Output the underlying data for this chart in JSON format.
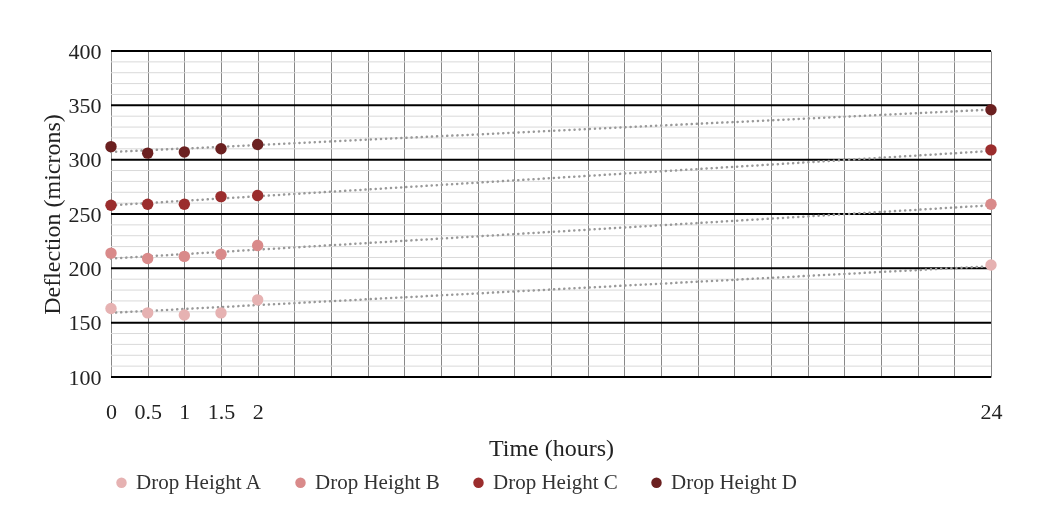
{
  "chart_data": {
    "type": "scatter",
    "xlabel": "Time (hours)",
    "ylabel": "Deflection (microns)",
    "categories": [
      "0",
      "0.5",
      "1",
      "1.5",
      "2",
      null,
      null,
      null,
      null,
      null,
      null,
      null,
      null,
      null,
      null,
      null,
      null,
      null,
      null,
      null,
      null,
      null,
      null,
      null,
      "24"
    ],
    "series": [
      {
        "name": "Drop Height A",
        "color": "#e6b2b2",
        "values": [
          163,
          159,
          157,
          159,
          171,
          null,
          null,
          null,
          null,
          null,
          null,
          null,
          null,
          null,
          null,
          null,
          null,
          null,
          null,
          null,
          null,
          null,
          null,
          null,
          203
        ]
      },
      {
        "name": "Drop Height B",
        "color": "#d98a8a",
        "values": [
          214,
          209,
          211,
          213,
          221,
          null,
          null,
          null,
          null,
          null,
          null,
          null,
          null,
          null,
          null,
          null,
          null,
          null,
          null,
          null,
          null,
          null,
          null,
          null,
          259
        ]
      },
      {
        "name": "Drop Height C",
        "color": "#9b2d2d",
        "values": [
          258,
          259,
          259,
          266,
          267,
          null,
          null,
          null,
          null,
          null,
          null,
          null,
          null,
          null,
          null,
          null,
          null,
          null,
          null,
          null,
          null,
          null,
          null,
          null,
          309
        ]
      },
      {
        "name": "Drop Height D",
        "color": "#6b2020",
        "values": [
          312,
          306,
          307,
          310,
          314,
          null,
          null,
          null,
          null,
          null,
          null,
          null,
          null,
          null,
          null,
          null,
          null,
          null,
          null,
          null,
          null,
          null,
          null,
          null,
          346
        ]
      },
      {
        "type": "line",
        "color": "#999999",
        "line_style": "dotted",
        "marker": "none",
        "x": [
          "0",
          "24"
        ],
        "values": [
          159,
          202
        ]
      },
      {
        "type": "line",
        "color": "#999999",
        "line_style": "dotted",
        "marker": "none",
        "x": [
          "0",
          "24"
        ],
        "values": [
          209,
          258
        ]
      },
      {
        "type": "line",
        "color": "#999999",
        "line_style": "dotted",
        "marker": "none",
        "x": [
          "0",
          "24"
        ],
        "values": [
          258,
          308
        ]
      },
      {
        "type": "line",
        "color": "#999999",
        "line_style": "dotted",
        "marker": "none",
        "x": [
          "0",
          "24"
        ],
        "values": [
          307,
          346
        ]
      }
    ],
    "ylim": [
      100,
      400
    ],
    "yticks": [
      100,
      {
        "value": 110,
        "label": null
      },
      {
        "value": 120,
        "label": null
      },
      {
        "value": 130,
        "label": null
      },
      {
        "value": 140,
        "label": null
      },
      150,
      {
        "value": 160,
        "label": null
      },
      {
        "value": 170,
        "label": null
      },
      {
        "value": 180,
        "label": null
      },
      {
        "value": 190,
        "label": null
      },
      200,
      {
        "value": 210,
        "label": null
      },
      {
        "value": 220,
        "label": null
      },
      {
        "value": 230,
        "label": null
      },
      {
        "value": 240,
        "label": null
      },
      250,
      {
        "value": 260,
        "label": null
      },
      {
        "value": 270,
        "label": null
      },
      {
        "value": 280,
        "label": null
      },
      {
        "value": 290,
        "label": null
      },
      300,
      {
        "value": 310,
        "label": null
      },
      {
        "value": 320,
        "label": null
      },
      {
        "value": 330,
        "label": null
      },
      {
        "value": 340,
        "label": null
      },
      350,
      {
        "value": 360,
        "label": null
      },
      {
        "value": 370,
        "label": null
      },
      {
        "value": 380,
        "label": null
      },
      {
        "value": 390,
        "label": null
      },
      400
    ],
    "grid": true,
    "legend": "bottom",
    "marker": "circle"
  }
}
